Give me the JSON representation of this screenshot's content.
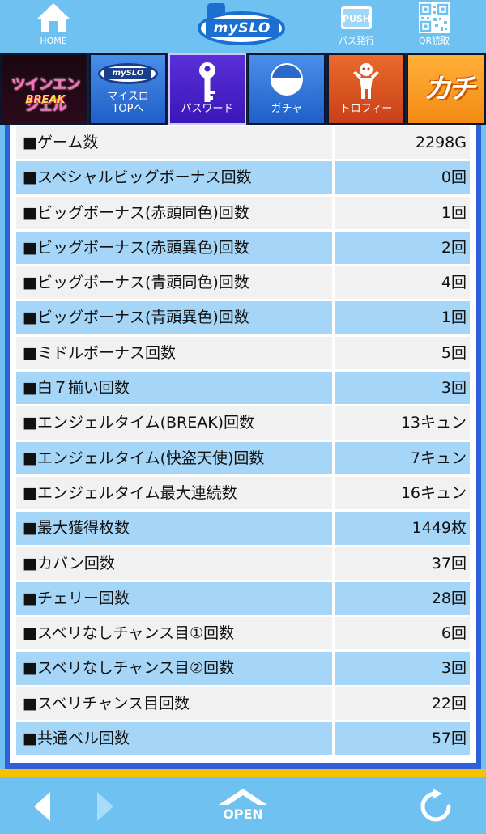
{
  "header": {
    "home_label": "HOME",
    "logo_text": "mySLO",
    "pass_label": "パス発行",
    "pass_icon_text": "PUSH",
    "qr_label": "QR読取"
  },
  "menu": {
    "banner_line1": "ツインエンジェル",
    "banner_line2": "BREAK",
    "mini_logo_text": "mySLO",
    "top_label_line1": "マイスロ",
    "top_label_line2": "TOPへ",
    "password_label": "パスワード",
    "gacha_label": "ガチャ",
    "trophy_label": "トロフィー",
    "kachi_label": "カチ"
  },
  "stats": [
    {
      "label": "■ゲーム数",
      "value": "2298G"
    },
    {
      "label": "■スペシャルビッグボーナス回数",
      "value": "0回"
    },
    {
      "label": "■ビッグボーナス(赤頭同色)回数",
      "value": "1回"
    },
    {
      "label": "■ビッグボーナス(赤頭異色)回数",
      "value": "2回"
    },
    {
      "label": "■ビッグボーナス(青頭同色)回数",
      "value": "4回"
    },
    {
      "label": "■ビッグボーナス(青頭異色)回数",
      "value": "1回"
    },
    {
      "label": "■ミドルボーナス回数",
      "value": "5回"
    },
    {
      "label": "■白７揃い回数",
      "value": "3回"
    },
    {
      "label": "■エンジェルタイム(BREAK)回数",
      "value": "13キュン"
    },
    {
      "label": "■エンジェルタイム(快盗天使)回数",
      "value": "7キュン"
    },
    {
      "label": "■エンジェルタイム最大連続数",
      "value": "16キュン"
    },
    {
      "label": "■最大獲得枚数",
      "value": "1449枚"
    },
    {
      "label": "■カバン回数",
      "value": "37回"
    },
    {
      "label": "■チェリー回数",
      "value": "28回"
    },
    {
      "label": "■スベリなしチャンス目①回数",
      "value": "6回"
    },
    {
      "label": "■スベリなしチャンス目②回数",
      "value": "3回"
    },
    {
      "label": "■スベリチャンス目回数",
      "value": "22回"
    },
    {
      "label": "■共通ベル回数",
      "value": "57回"
    }
  ],
  "footer": {
    "open_label": "OPEN"
  },
  "colors": {
    "header_bg": "#6ec1f0",
    "row_light": "#f1f1f1",
    "row_blue": "#a6d6f7",
    "frame_blue": "#2e60de",
    "footer_stripe": "#f6c200"
  }
}
